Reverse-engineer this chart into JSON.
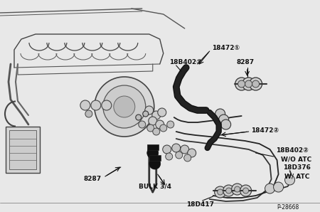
{
  "bg_color": "#e8e8e8",
  "line_color": "#333333",
  "black": "#111111",
  "white": "#ffffff",
  "labels": {
    "18472_1": "18472①",
    "18B402_1": "18B402①",
    "8287_top": "8287",
    "18472_2": "18472②",
    "18B402_2": "18B402②",
    "wo_atc": "W/O ATC",
    "18D376": "18D376",
    "w_atc": "W/ ATC",
    "8287_bot": "8287",
    "bulk34": "BULK 3/4",
    "18D417": "18D417",
    "part_num": "P-28668"
  }
}
